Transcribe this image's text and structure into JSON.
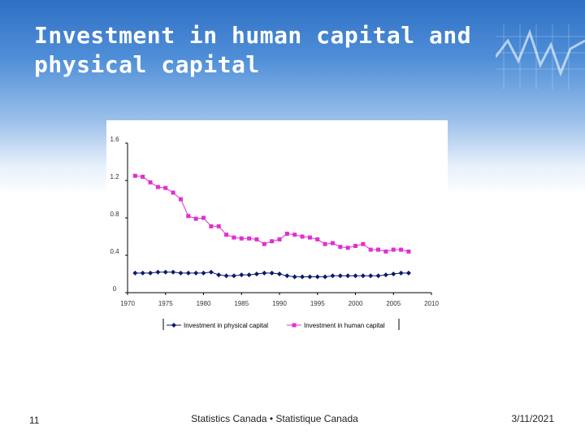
{
  "slide": {
    "title_line1": "Investment in human capital and",
    "title_line2": "physical capital",
    "slide_number": "11",
    "footer_center": "Statistics Canada • Statistique Canada",
    "footer_date": "3/11/2021"
  },
  "colors": {
    "physical": "#0a1a6e",
    "human": "#e030d0",
    "axis": "#000000"
  },
  "chart_data": {
    "type": "line",
    "title": "",
    "xlabel": "",
    "ylabel": "",
    "xlim": [
      1970,
      2010
    ],
    "ylim": [
      0,
      1.6
    ],
    "x_ticks": [
      "1970",
      "1975",
      "1980",
      "1985",
      "1990",
      "1995",
      "2000",
      "2005",
      "2010"
    ],
    "y_ticks": [
      "0",
      "0.4",
      "0.8",
      "1.2",
      "1.6"
    ],
    "x": [
      1971,
      1972,
      1973,
      1974,
      1975,
      1976,
      1977,
      1978,
      1979,
      1980,
      1981,
      1982,
      1983,
      1984,
      1985,
      1986,
      1987,
      1988,
      1989,
      1990,
      1991,
      1992,
      1993,
      1994,
      1995,
      1996,
      1997,
      1998,
      1999,
      2000,
      2001,
      2002,
      2003,
      2004,
      2005,
      2006,
      2007
    ],
    "series": [
      {
        "name": "Investment in physical capital",
        "marker": "diamond",
        "values": [
          0.21,
          0.21,
          0.21,
          0.22,
          0.22,
          0.22,
          0.21,
          0.21,
          0.21,
          0.21,
          0.22,
          0.19,
          0.18,
          0.18,
          0.19,
          0.19,
          0.2,
          0.21,
          0.21,
          0.2,
          0.18,
          0.17,
          0.17,
          0.17,
          0.17,
          0.17,
          0.18,
          0.18,
          0.18,
          0.18,
          0.18,
          0.18,
          0.18,
          0.19,
          0.2,
          0.21,
          0.21
        ]
      },
      {
        "name": "Investment in human capital",
        "marker": "square",
        "values": [
          1.25,
          1.24,
          1.18,
          1.13,
          1.12,
          1.07,
          1.0,
          0.82,
          0.79,
          0.8,
          0.71,
          0.71,
          0.62,
          0.59,
          0.58,
          0.58,
          0.57,
          0.52,
          0.55,
          0.57,
          0.63,
          0.62,
          0.6,
          0.59,
          0.57,
          0.52,
          0.53,
          0.49,
          0.48,
          0.5,
          0.52,
          0.46,
          0.46,
          0.44,
          0.46,
          0.46,
          0.44
        ]
      }
    ],
    "legend_position": "bottom"
  }
}
